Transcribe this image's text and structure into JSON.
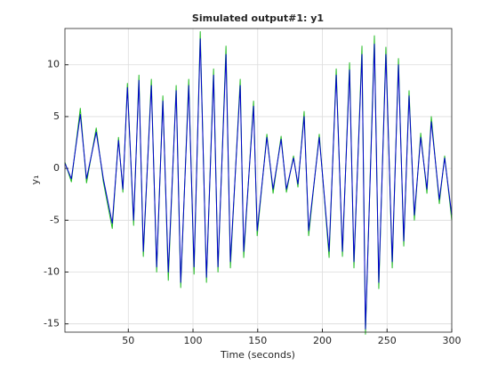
{
  "chart_data": {
    "type": "line",
    "title": "Simulated output#1: y1",
    "xlabel": "Time (seconds)",
    "ylabel": "y₁",
    "x": [
      1,
      6,
      12.9,
      17.7,
      25.2,
      30.7,
      37.6,
      42.4,
      45.8,
      49.3,
      54.1,
      58.2,
      61.6,
      67.8,
      71.9,
      76.7,
      80.9,
      87,
      90.5,
      96.7,
      100.8,
      105.6,
      110.4,
      115.9,
      119.3,
      125.5,
      128.9,
      136.5,
      139.2,
      146.8,
      149.6,
      157.1,
      161.9,
      168.1,
      172.2,
      177.7,
      181.1,
      185.9,
      189.4,
      197.6,
      205.2,
      210.7,
      215.5,
      221,
      224.4,
      230.6,
      233.3,
      240.2,
      243.6,
      249.1,
      254,
      258.8,
      262.9,
      267,
      271.1,
      276,
      280.8,
      284.2,
      290.4,
      294.5,
      300
    ],
    "series": [
      {
        "color": "#22bb22",
        "values": [
          0.6,
          -1.3,
          5.8,
          -1.4,
          3.9,
          -1.3,
          -5.8,
          3,
          -2.3,
          8.2,
          -5.5,
          9,
          -8.5,
          8.6,
          -10,
          7,
          -10.8,
          8,
          -11.5,
          8.6,
          -10.2,
          13.2,
          -11,
          9.6,
          -10,
          11.8,
          -9.6,
          8.6,
          -8.6,
          6.5,
          -6.5,
          3.3,
          -2.4,
          3.1,
          -2.3,
          1.2,
          -1.8,
          5.5,
          -6.5,
          3.3,
          -8.6,
          9.6,
          -8.5,
          10.2,
          -9.6,
          11.8,
          -16,
          12.8,
          -11.6,
          11.7,
          -9.6,
          10.6,
          -7.5,
          7.5,
          -5,
          3.4,
          -2.4,
          5,
          -3.4,
          1.2,
          -5
        ]
      },
      {
        "color": "#0000cc",
        "values": [
          0.5,
          -1,
          5.2,
          -1,
          3.5,
          -1,
          -5.3,
          2.7,
          -2,
          7.8,
          -5,
          8.5,
          -8,
          8,
          -9.5,
          6.5,
          -10,
          7.5,
          -11,
          8,
          -9.5,
          12.5,
          -10.5,
          9,
          -9.5,
          11,
          -9,
          8,
          -8,
          6,
          -6,
          3,
          -2,
          2.8,
          -2,
          1,
          -1.5,
          5,
          -6,
          3,
          -8,
          9,
          -8,
          9.5,
          -9,
          11,
          -15.5,
          12,
          -11,
          11,
          -9,
          10,
          -7,
          7,
          -4.5,
          3,
          -2,
          4.5,
          -3,
          1,
          -4.5
        ]
      }
    ],
    "xlim": [
      1,
      300
    ],
    "ylim": [
      -15.8,
      13.5
    ],
    "xticks": [
      50,
      100,
      150,
      200,
      250,
      300
    ],
    "yticks": [
      -15,
      -10,
      -5,
      0,
      5,
      10
    ],
    "grid": true
  }
}
